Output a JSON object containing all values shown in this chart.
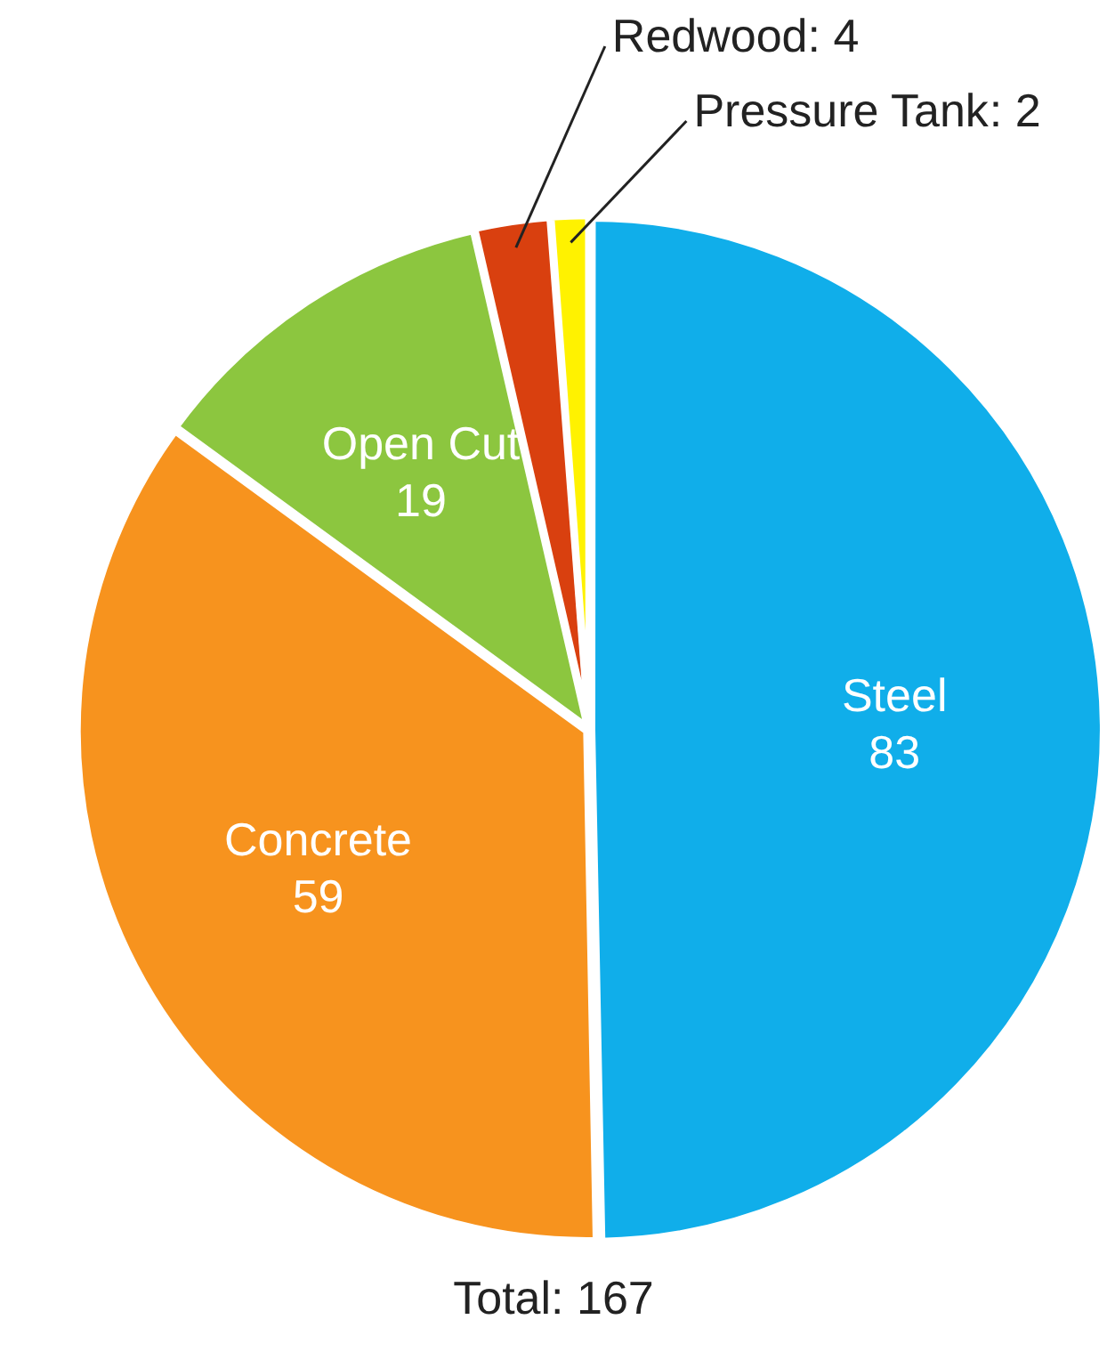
{
  "chart_data": {
    "type": "pie",
    "categories": [
      "Steel",
      "Concrete",
      "Open Cut",
      "Redwood",
      "Pressure Tank"
    ],
    "values": [
      83,
      59,
      19,
      4,
      2
    ],
    "colors": [
      "#10aeea",
      "#f7931e",
      "#8cc63f",
      "#d9400f",
      "#fff200"
    ],
    "value_labels": [
      "83",
      "59",
      "19",
      ": 4",
      ": 2"
    ],
    "legend": false,
    "annotations": [
      "Total: 167"
    ]
  }
}
